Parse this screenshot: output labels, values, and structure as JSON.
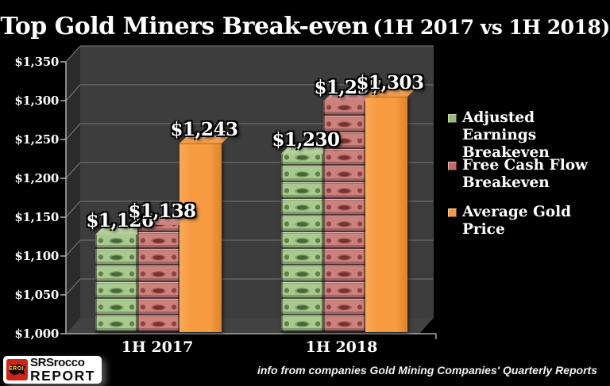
{
  "title": {
    "main": "Top Gold Miners Break-even",
    "paren": "(1H 2017 vs 1H 2018)"
  },
  "chart_data": {
    "type": "bar",
    "effect": "3d-clustered-column",
    "title": "Top Gold Miners Break-even (1H 2017 vs 1H 2018)",
    "categories": [
      "1H 2017",
      "1H 2018"
    ],
    "series": [
      {
        "name": "Adjusted Earnings Breakeven",
        "color": "#97BD77",
        "texture": "green-dollar-bills",
        "values": [
          1126,
          1230
        ],
        "value_labels": [
          "$1,126",
          "$1,230"
        ]
      },
      {
        "name": "Free Cash Flow Breakeven",
        "color": "#C46B66",
        "texture": "red-dollar-bills",
        "values": [
          1138,
          1297
        ],
        "value_labels": [
          "$1,138",
          "$1,297"
        ]
      },
      {
        "name": "Average Gold Price",
        "color": "#F79B40",
        "texture": "solid-orange",
        "values": [
          1243,
          1303
        ],
        "value_labels": [
          "$1,243",
          "$1,303"
        ]
      }
    ],
    "ylim": [
      1000,
      1350
    ],
    "ytick_step": 50,
    "ytick_labels": [
      "$1,000",
      "$1,050",
      "$1,100",
      "$1,150",
      "$1,200",
      "$1,250",
      "$1,300",
      "$1,350"
    ],
    "grid": true,
    "legend_position": "right",
    "background": "#000000",
    "wall_color": "#3D3D3D",
    "gridline_color": "#6B6B6B"
  },
  "legend": {
    "items": [
      {
        "label": "Adjusted Earnings\nBreakeven",
        "color": "#97BD77"
      },
      {
        "label": "Free Cash Flow\nBreakeven",
        "color": "#C46B66"
      },
      {
        "label": "Average Gold Price",
        "color": "#F79B40"
      }
    ]
  },
  "footnote": "info from companies Gold Mining Companies' Quarterly Reports",
  "logo": {
    "badge_text": "EROI",
    "name": "SRSrocco",
    "name2": "REPORT"
  }
}
